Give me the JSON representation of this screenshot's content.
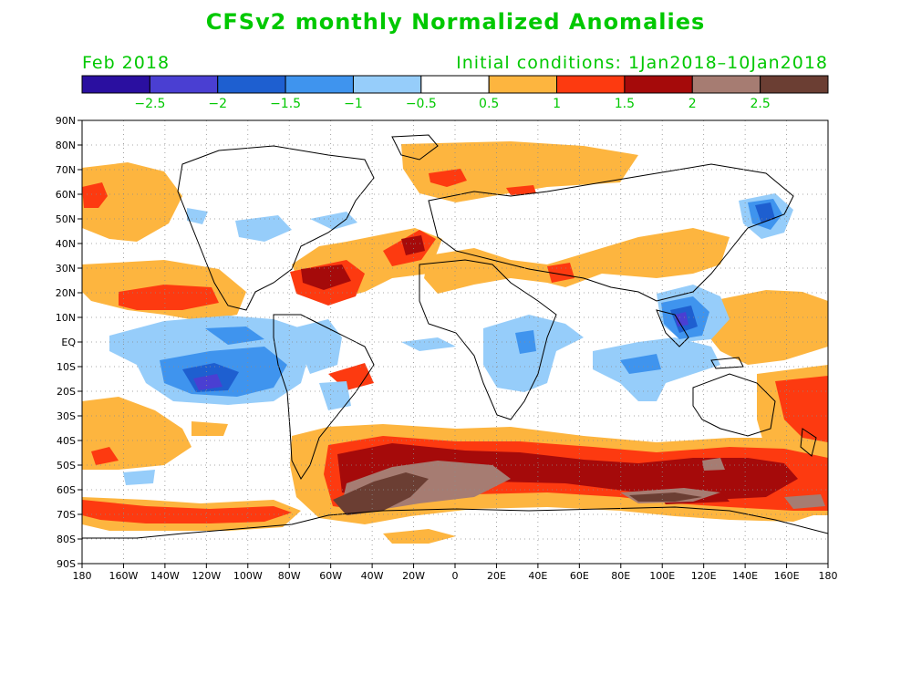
{
  "title": "CFSv2 monthly Normalized Anomalies",
  "valid_month": "Feb 2018",
  "initial_conditions": "Initial conditions: 1Jan2018–10Jan2018",
  "colorbar": {
    "colors": [
      "#2a0fa0",
      "#4a3fd2",
      "#1e5fd0",
      "#3f94ee",
      "#96cdfa",
      "#ffffff",
      "#fdb53f",
      "#fd3a10",
      "#a50a0a",
      "#a67c72",
      "#6b3e33"
    ],
    "labels": [
      "−2.5",
      "−2",
      "−1.5",
      "−1",
      "−0.5",
      "0.5",
      "1",
      "1.5",
      "2",
      "2.5"
    ]
  },
  "axes": {
    "lat_labels": [
      "90N",
      "80N",
      "70N",
      "60N",
      "50N",
      "40N",
      "30N",
      "20N",
      "10N",
      "EQ",
      "10S",
      "20S",
      "30S",
      "40S",
      "50S",
      "60S",
      "70S",
      "80S",
      "90S"
    ],
    "lon_labels": [
      "180",
      "160W",
      "140W",
      "120W",
      "100W",
      "80W",
      "60W",
      "40W",
      "20W",
      "0",
      "20E",
      "40E",
      "60E",
      "80E",
      "100E",
      "120E",
      "140E",
      "160E",
      "180"
    ]
  }
}
